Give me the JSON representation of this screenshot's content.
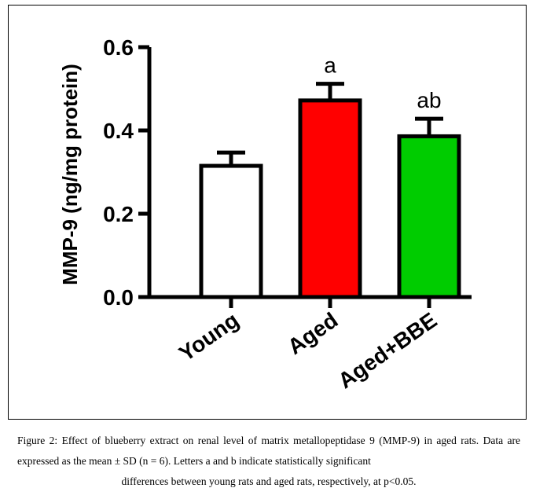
{
  "chart_data": {
    "type": "bar",
    "categories": [
      "Young",
      "Aged",
      "Aged+BBE"
    ],
    "values": [
      0.315,
      0.472,
      0.386
    ],
    "errors": [
      0.032,
      0.04,
      0.042
    ],
    "significance_labels": [
      "",
      "a",
      "ab"
    ],
    "colors": [
      "#ffffff",
      "#ff0000",
      "#00cc00"
    ],
    "ylabel": "MMP-9 (ng/mg protein)",
    "xlabel": "",
    "ylim": [
      0,
      0.6
    ],
    "yticks": [
      "0.0",
      "0.2",
      "0.4",
      "0.6"
    ],
    "ytick_values": [
      0,
      0.2,
      0.4,
      0.6
    ],
    "grid": false
  },
  "caption": {
    "main": "Figure 2: Effect of blueberry extract on renal level of matrix metallopeptidase 9 (MMP-9) in aged rats. Data are expressed as the mean ± SD (n = 6). Letters a and b indicate statistically significant",
    "last_line": "differences between young rats and aged rats, respectively, at p<0.05."
  }
}
